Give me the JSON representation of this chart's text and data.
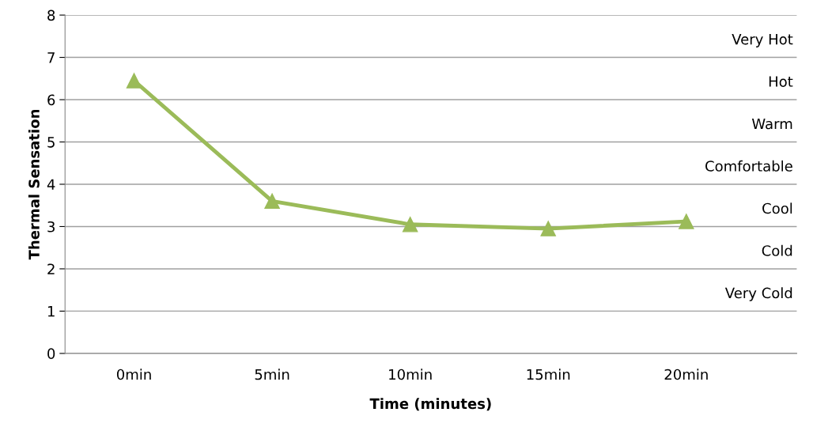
{
  "chart_data": {
    "type": "line",
    "xlabel": "Time (minutes)",
    "ylabel": "Thermal Sensation",
    "categories": [
      "0min",
      "5min",
      "10min",
      "15min",
      "20min"
    ],
    "series": [
      {
        "color": "#9bbb59",
        "values": [
          6.45,
          3.6,
          3.05,
          2.95,
          3.12
        ]
      }
    ],
    "ylim": [
      0,
      8
    ],
    "yticks": [
      0,
      1,
      2,
      3,
      4,
      5,
      6,
      7,
      8
    ],
    "grid": "y",
    "marker": "triangle",
    "line_style": "solid",
    "annotations": [
      "Very Hot",
      "Hot",
      "Warm",
      "Comfortable",
      "Cool",
      "Cold",
      "Very Cold"
    ]
  }
}
